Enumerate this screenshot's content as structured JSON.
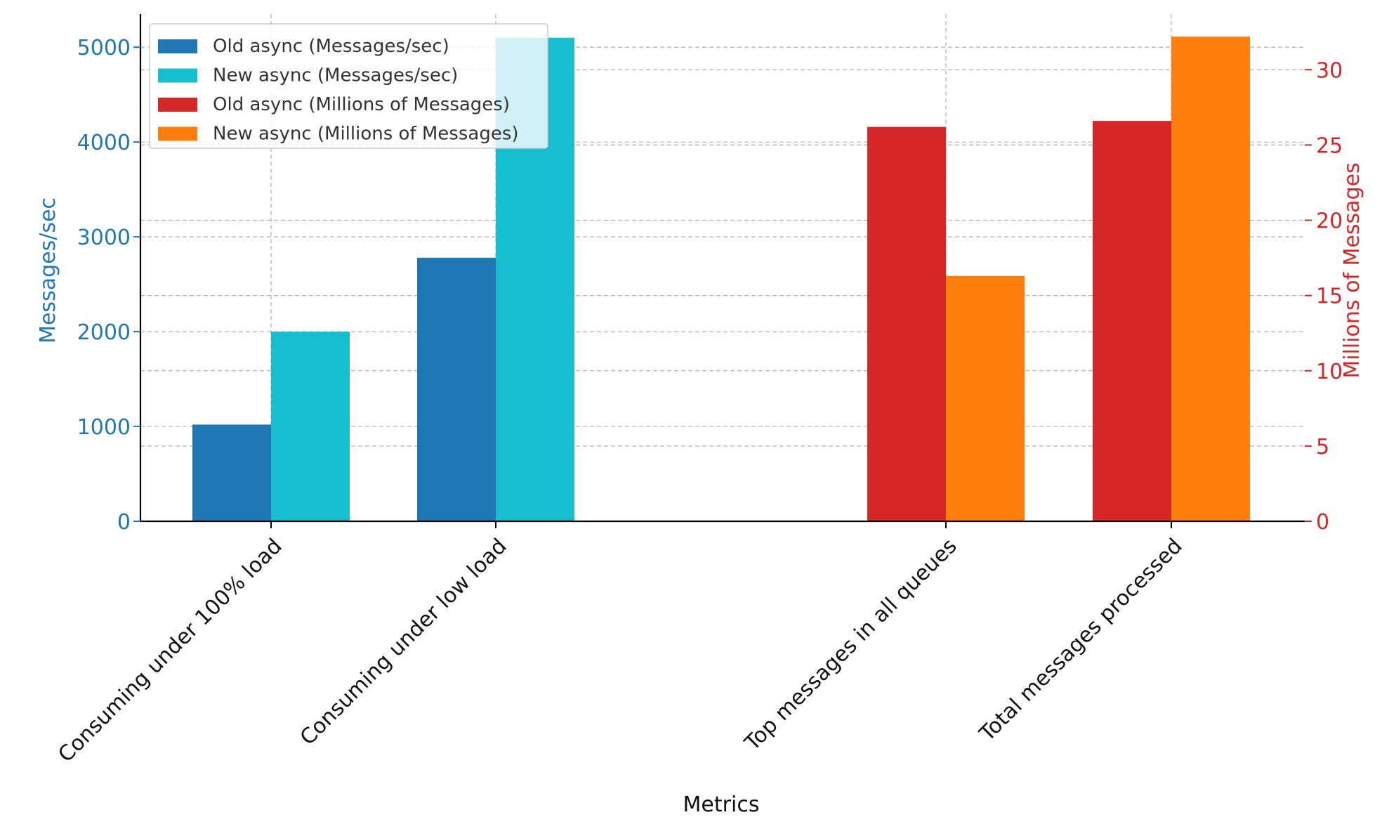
{
  "chart_data": {
    "type": "bar",
    "xlabel": "Metrics",
    "categories": [
      "Consuming under 100% load",
      "Consuming under low load",
      "Top messages in all queues",
      "Total messages processed"
    ],
    "y_left": {
      "label": "Messages/sec",
      "range": [
        0,
        5350
      ],
      "ticks": [
        0,
        1000,
        2000,
        3000,
        4000,
        5000
      ],
      "color": "#1f77b4"
    },
    "y_right": {
      "label": "Millions of Messages",
      "range": [
        0,
        33.7
      ],
      "ticks": [
        0,
        5,
        10,
        15,
        20,
        25,
        30
      ],
      "color": "#d62728"
    },
    "grid": true,
    "legend_position": "top-left",
    "series": [
      {
        "name": "Old async (Messages/sec)",
        "axis": "left",
        "color": "#1f77b4",
        "values": [
          1020,
          2780,
          null,
          null
        ]
      },
      {
        "name": "New async (Messages/sec)",
        "axis": "left",
        "color": "#17becf",
        "values": [
          2000,
          5100,
          null,
          null
        ]
      },
      {
        "name": "Old async (Millions of Messages)",
        "axis": "right",
        "color": "#d62728",
        "values": [
          null,
          null,
          26.2,
          26.6
        ]
      },
      {
        "name": "New async (Millions of Messages)",
        "axis": "right",
        "color": "#ff7f0e",
        "values": [
          null,
          null,
          16.3,
          32.2
        ]
      }
    ]
  }
}
